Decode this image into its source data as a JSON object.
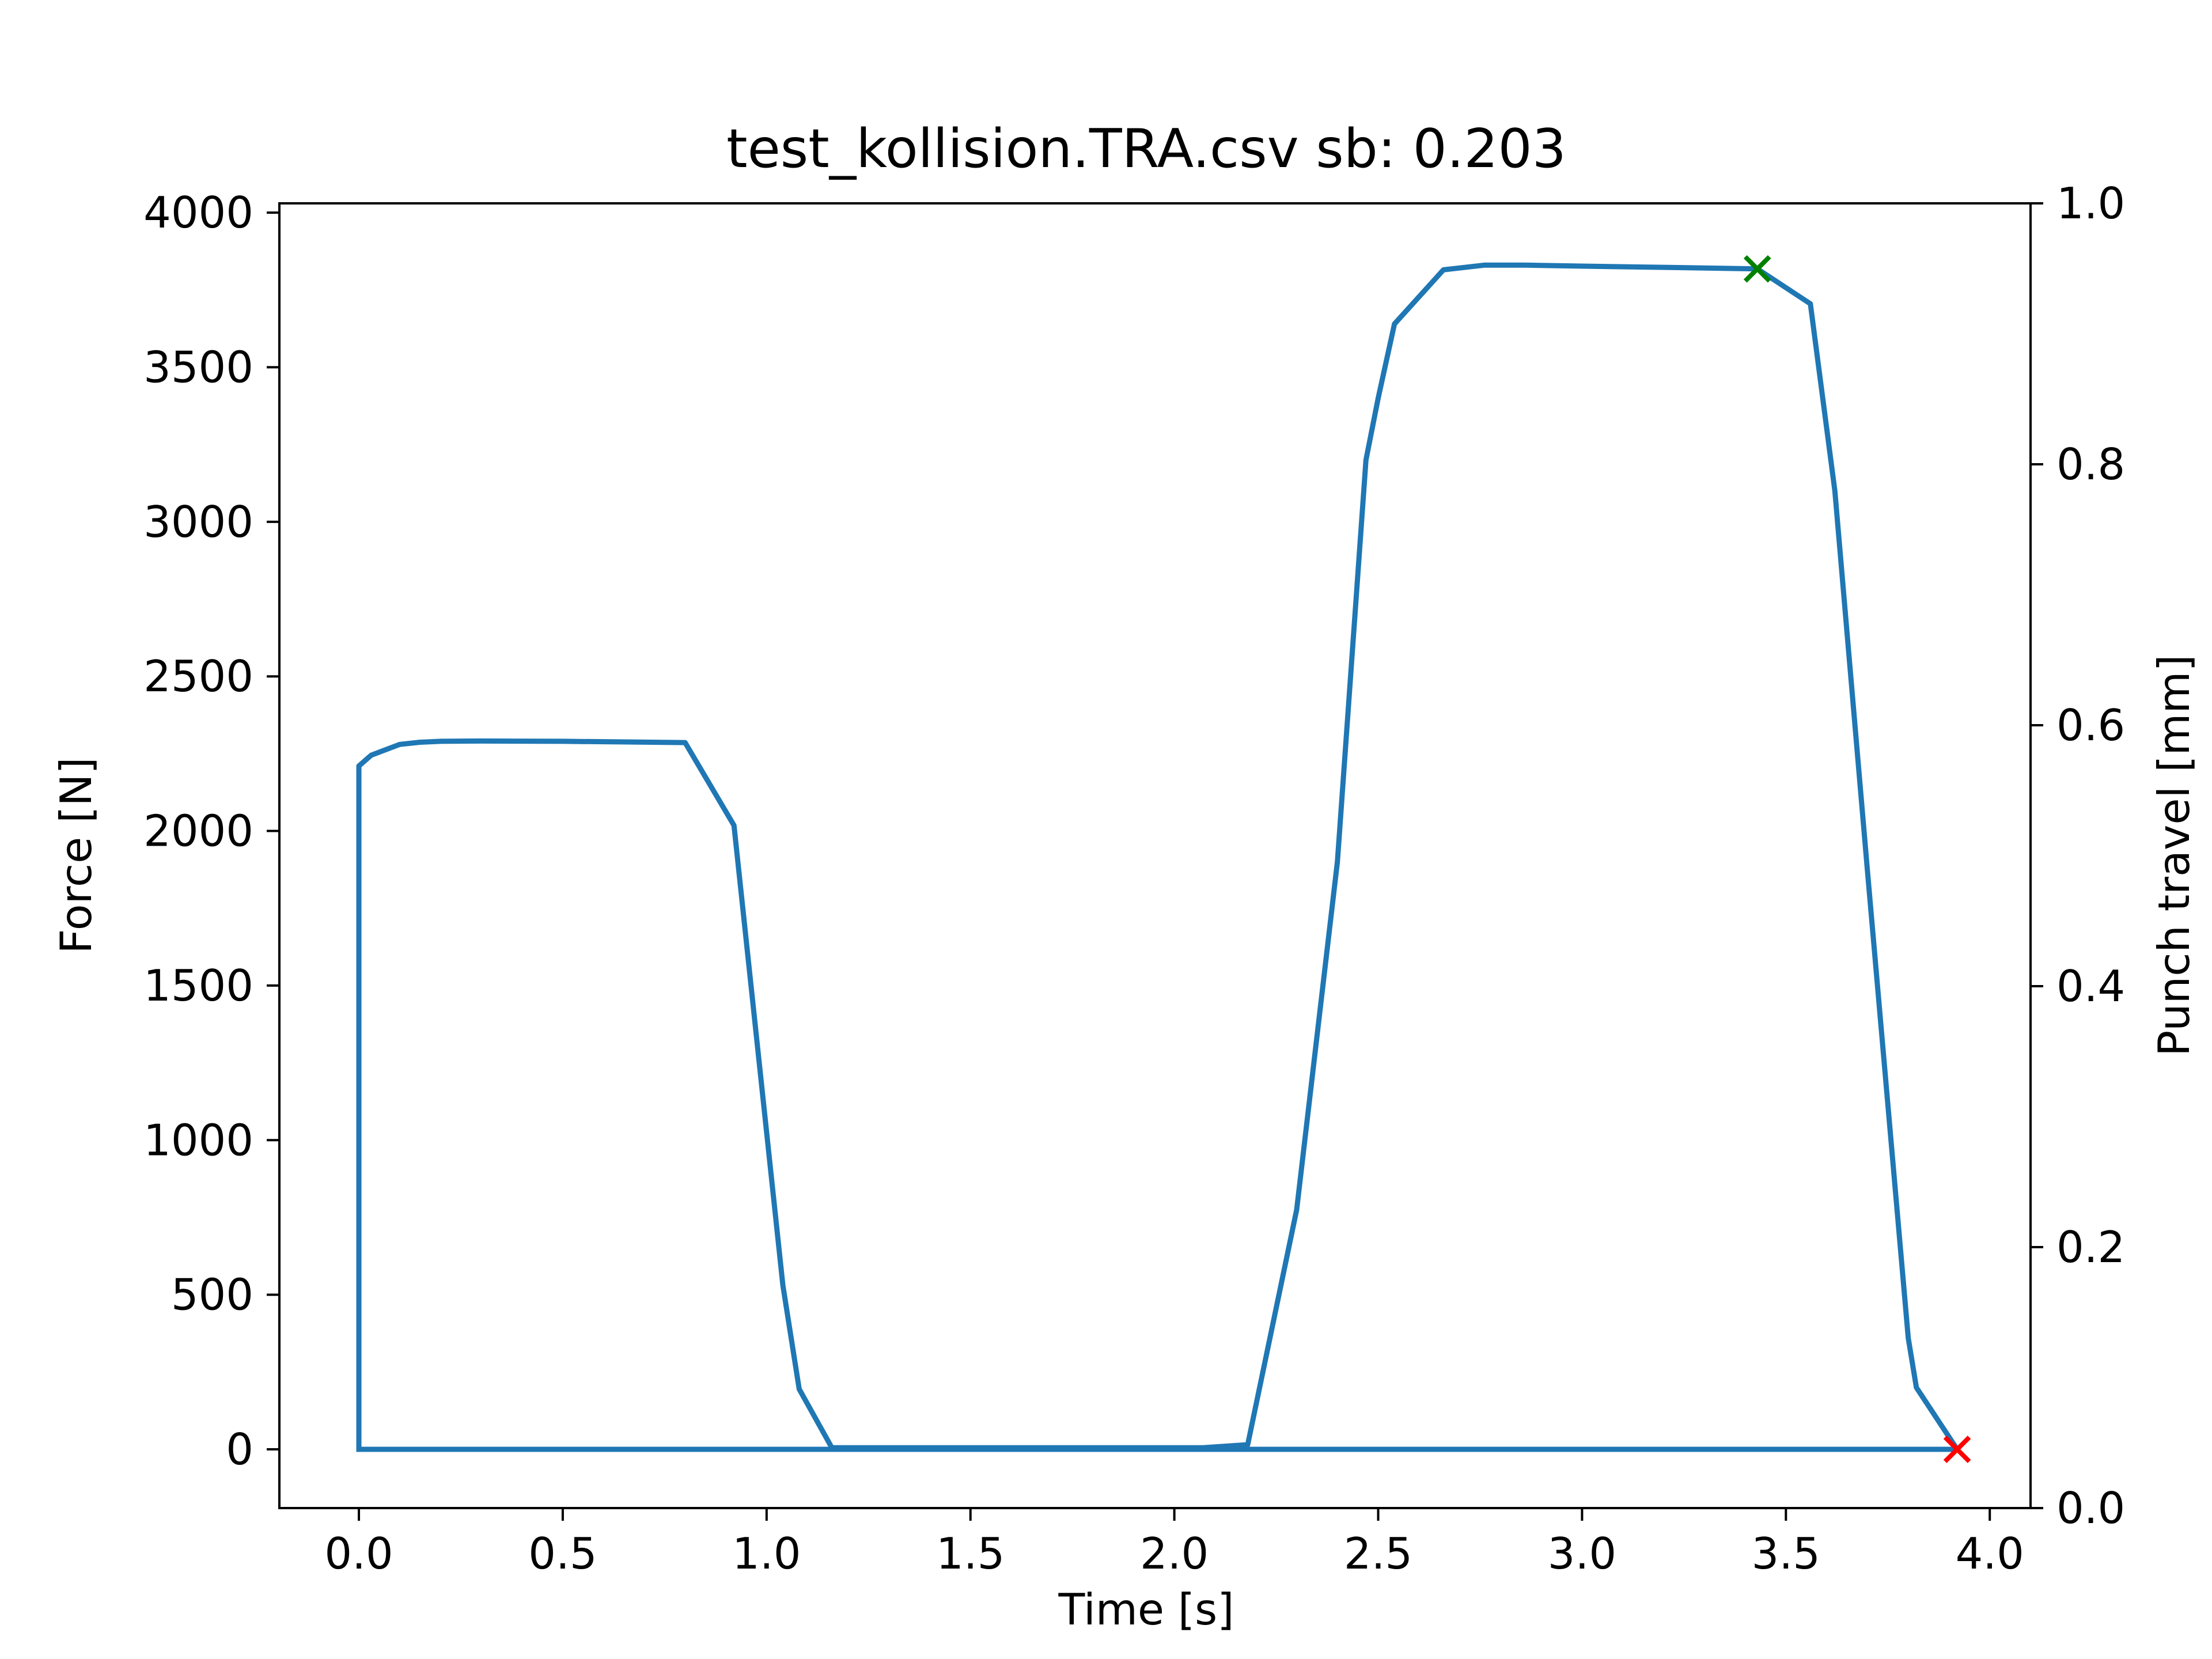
{
  "chart_data": {
    "type": "line",
    "title": "test_kollision.TRA.csv sb: 0.203",
    "xlabel": "Time [s]",
    "ylabel": "Force [N]",
    "y2label": "Punch travel [mm]",
    "xlim": [
      -0.195,
      4.1
    ],
    "ylim": [
      -190,
      4030
    ],
    "y2lim": [
      0.0,
      1.0
    ],
    "xticks": [
      "0.0",
      "0.5",
      "1.0",
      "1.5",
      "2.0",
      "2.5",
      "3.0",
      "3.5",
      "4.0"
    ],
    "yticks": [
      "0",
      "500",
      "1000",
      "1500",
      "2000",
      "2500",
      "3000",
      "3500",
      "4000"
    ],
    "y2ticks": [
      "0.0",
      "0.2",
      "0.4",
      "0.6",
      "0.8",
      "1.0"
    ],
    "grid": false,
    "series": [
      {
        "color": "#1f77b4",
        "x": [
          0.0,
          0.0,
          0.03,
          0.07,
          0.1,
          0.15,
          0.2,
          0.3,
          0.5,
          0.8,
          0.92,
          1.04,
          1.08,
          1.16,
          1.5,
          2.0,
          2.07,
          2.18,
          2.3,
          2.4,
          2.47,
          2.5,
          2.54,
          2.66,
          2.76,
          2.86,
          3.0,
          3.2,
          3.43,
          3.56,
          3.62,
          3.7,
          3.8,
          3.82,
          3.92,
          3.0,
          2.0,
          1.0,
          0.5,
          0.03,
          0.0
        ],
        "y": [
          0,
          2210,
          2245,
          2265,
          2280,
          2287,
          2290,
          2291,
          2290,
          2286,
          2018,
          530,
          195,
          5,
          5,
          5,
          5,
          15,
          775,
          1900,
          3200,
          3400,
          3640,
          3815,
          3830,
          3830,
          3827,
          3823,
          3818,
          3705,
          3100,
          1870,
          360,
          200,
          0,
          0,
          0,
          0,
          0,
          0,
          0
        ]
      }
    ],
    "markers": [
      {
        "x": 3.43,
        "y": 3818,
        "symbol": "x",
        "color": "#008000"
      },
      {
        "x": 3.92,
        "y": 0,
        "symbol": "x",
        "color": "#ff0000"
      }
    ]
  }
}
